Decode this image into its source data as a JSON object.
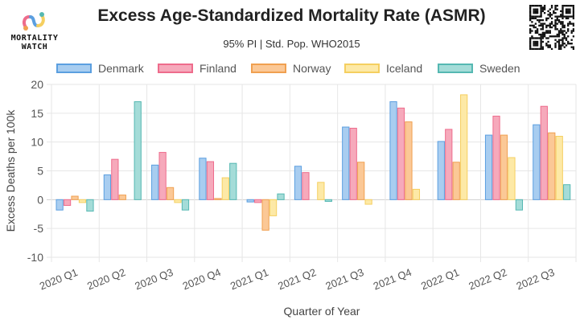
{
  "logo": {
    "line1": "MORTALITY",
    "line2": "WATCH"
  },
  "chart_data": {
    "type": "bar",
    "title": "Excess Age-Standardized Mortality Rate (ASMR)",
    "subtitle": "95% PI | Std. Pop. WHO2015",
    "xlabel": "Quarter of Year",
    "ylabel": "Excess Deaths per 100k",
    "ylim": [
      -10,
      20
    ],
    "yticks": [
      -10,
      -5,
      0,
      5,
      10,
      15,
      20
    ],
    "grid": true,
    "legend_position": "top",
    "categories": [
      "2020 Q1",
      "2020 Q2",
      "2020 Q3",
      "2020 Q4",
      "2021 Q1",
      "2021 Q2",
      "2021 Q3",
      "2021 Q4",
      "2022 Q1",
      "2022 Q2",
      "2022 Q3"
    ],
    "series": [
      {
        "name": "Denmark",
        "fill": "#a8cdf0",
        "stroke": "#5b9fe0",
        "values": [
          -1.8,
          4.3,
          6.0,
          7.2,
          -0.4,
          5.8,
          12.6,
          17.0,
          10.1,
          11.2,
          13.0
        ]
      },
      {
        "name": "Finland",
        "fill": "#f6a9bb",
        "stroke": "#ee6c8c",
        "values": [
          -1.0,
          7.0,
          8.2,
          6.6,
          -0.5,
          4.7,
          12.4,
          15.9,
          12.2,
          14.5,
          16.2
        ]
      },
      {
        "name": "Norway",
        "fill": "#fbc896",
        "stroke": "#f0a050",
        "values": [
          0.6,
          0.8,
          2.1,
          0.2,
          -5.3,
          0.0,
          6.5,
          13.5,
          6.5,
          11.2,
          11.6
        ]
      },
      {
        "name": "Iceland",
        "fill": "#fde9a6",
        "stroke": "#f5cf60",
        "values": [
          -0.5,
          0.0,
          -0.5,
          3.8,
          -2.8,
          3.0,
          -0.8,
          1.8,
          18.2,
          7.3,
          11.0
        ]
      },
      {
        "name": "Sweden",
        "fill": "#a4dcd8",
        "stroke": "#55b8b2",
        "values": [
          -2.0,
          17.0,
          -1.8,
          6.3,
          1.0,
          -0.3,
          0.0,
          0.0,
          0.0,
          -1.8,
          2.6
        ]
      }
    ]
  }
}
